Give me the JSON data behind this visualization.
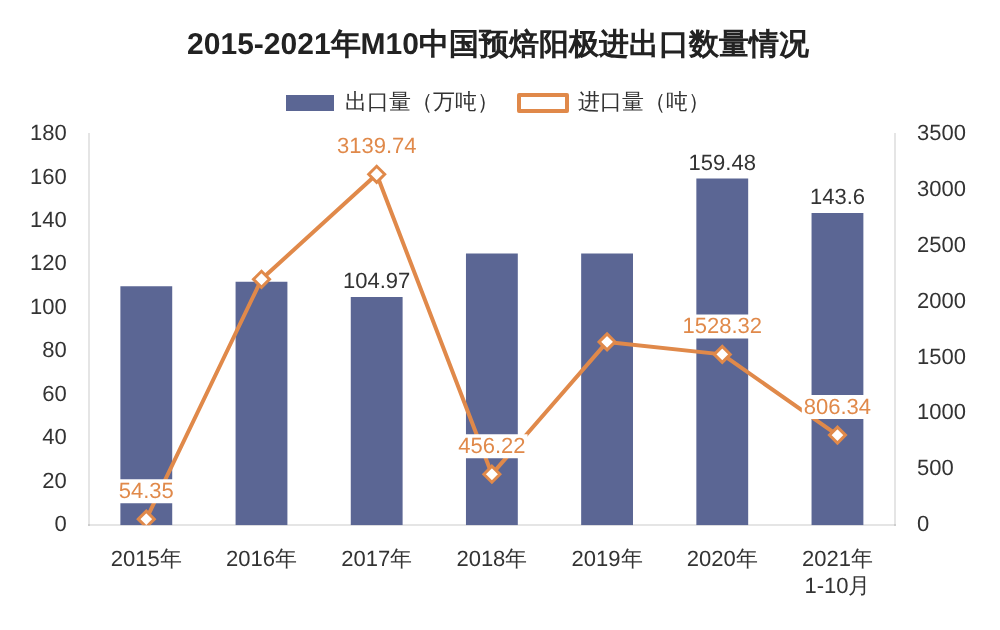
{
  "chart_data": {
    "type": "bar",
    "title": "2015-2021年M10中国预焙阳极进出口数量情况",
    "categories": [
      "2015年",
      "2016年",
      "2017年",
      "2018年",
      "2019年",
      "2020年",
      "2021年\n1-10月"
    ],
    "series": [
      {
        "name": "出口量（万吨）",
        "color": "#5b6694",
        "values": [
          110,
          112,
          104.97,
          125,
          125,
          159.48,
          143.6
        ],
        "value_labels": [
          null,
          null,
          "104.97",
          null,
          null,
          "159.48",
          "143.6"
        ]
      },
      {
        "name": "进口量（吨）",
        "type": "line",
        "axis": "y2",
        "color": "#e0894a",
        "marker": "diamond",
        "values": [
          54.35,
          2200,
          3139.74,
          456.22,
          1640,
          1528.32,
          806.34
        ],
        "value_labels": [
          "54.35",
          null,
          "3139.74",
          "456.22",
          null,
          "1528.32",
          "806.34"
        ]
      }
    ],
    "ylim": [
      0,
      180
    ],
    "yticks": [
      0,
      20,
      40,
      60,
      80,
      100,
      120,
      140,
      160,
      180
    ],
    "y2lim": [
      0,
      3500
    ],
    "y2ticks": [
      0,
      500,
      1000,
      1500,
      2000,
      2500,
      3000,
      3500
    ],
    "grid": false,
    "legend": "top"
  }
}
